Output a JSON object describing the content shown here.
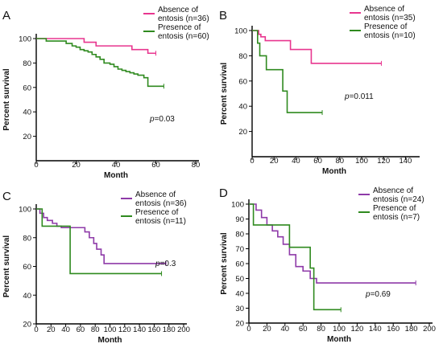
{
  "chart_data": [
    {
      "panel": "A",
      "type": "line",
      "xlabel": "Month",
      "ylabel": "Percent survival",
      "xlim": [
        0,
        80
      ],
      "ylim": [
        0,
        100
      ],
      "xticks": [
        "0",
        "20",
        "40",
        "60",
        "80"
      ],
      "yticks": [
        "20",
        "40",
        "60",
        "80",
        "100"
      ],
      "legend_position": "top-right",
      "p_prefix": "p",
      "p_value": "=0.03",
      "series": [
        {
          "name": "Absence of entosis (n=36)",
          "color": "#e8368f",
          "x": [
            0,
            22,
            24,
            30,
            48,
            56,
            60
          ],
          "y": [
            100,
            100,
            97,
            94,
            91,
            88,
            88
          ]
        },
        {
          "name": "Presence of entosis (n=60)",
          "color": "#2f8a1f",
          "x": [
            0,
            5,
            12,
            15,
            18,
            20,
            22,
            24,
            26,
            28,
            30,
            32,
            34,
            37,
            39,
            41,
            43,
            45,
            47,
            49,
            51,
            54,
            56,
            64
          ],
          "y": [
            100,
            98,
            98,
            96,
            94,
            93,
            91,
            90,
            89,
            87,
            85,
            83,
            80,
            79,
            77,
            75,
            74,
            73,
            72,
            71,
            70,
            68,
            61,
            61
          ]
        }
      ]
    },
    {
      "panel": "B",
      "type": "line",
      "xlabel": "Month",
      "ylabel": "Percent survival",
      "xlim": [
        0,
        150
      ],
      "ylim": [
        0,
        100
      ],
      "xticks": [
        "0",
        "20",
        "40",
        "60",
        "80",
        "100",
        "120",
        "140"
      ],
      "yticks": [
        "20",
        "40",
        "60",
        "80",
        "100"
      ],
      "legend_position": "top-right",
      "p_prefix": "p",
      "p_value": "=0.011",
      "series": [
        {
          "name": "Absence of entosis (n=35)",
          "color": "#e8368f",
          "x": [
            0,
            4,
            6,
            8,
            12,
            32,
            35,
            52,
            54,
            118
          ],
          "y": [
            100,
            100,
            97,
            95,
            92,
            92,
            85,
            85,
            74,
            74
          ]
        },
        {
          "name": "Presence of entosis (n=10)",
          "color": "#2f8a1f",
          "x": [
            0,
            3,
            5,
            7,
            13,
            18,
            28,
            32,
            64
          ],
          "y": [
            100,
            100,
            90,
            80,
            69,
            69,
            52,
            35,
            35
          ]
        }
      ]
    },
    {
      "panel": "C",
      "type": "line",
      "xlabel": "Month",
      "ylabel": "Percent survival",
      "xlim": [
        0,
        200
      ],
      "ylim": [
        20,
        100
      ],
      "xticks": [
        "0",
        "20",
        "40",
        "60",
        "80",
        "100",
        "120",
        "140",
        "160",
        "180",
        "200"
      ],
      "yticks": [
        "20",
        "40",
        "60",
        "80",
        "100"
      ],
      "legend_position": "top-right",
      "p_prefix": "p",
      "p_value": "=0.3",
      "series": [
        {
          "name": "Absence of entosis (n=36)",
          "color": "#8e3aa8",
          "x": [
            0,
            5,
            10,
            15,
            22,
            28,
            34,
            60,
            66,
            72,
            78,
            82,
            88,
            92,
            176
          ],
          "y": [
            100,
            97,
            94,
            92,
            90,
            88,
            87,
            87,
            84,
            80,
            76,
            72,
            68,
            62,
            62
          ]
        },
        {
          "name": "Presence of entosis (n=11)",
          "color": "#2f8a1f",
          "x": [
            0,
            8,
            40,
            46,
            170
          ],
          "y": [
            100,
            88,
            88,
            55,
            55
          ]
        }
      ]
    },
    {
      "panel": "D",
      "type": "line",
      "xlabel": "Month",
      "ylabel": "Percent survival",
      "xlim": [
        0,
        200
      ],
      "ylim": [
        20,
        100
      ],
      "xticks": [
        "0",
        "20",
        "40",
        "60",
        "80",
        "100",
        "120",
        "140",
        "160",
        "180",
        "200"
      ],
      "yticks": [
        "20",
        "30",
        "40",
        "50",
        "60",
        "70",
        "80",
        "90",
        "100"
      ],
      "legend_position": "top-right",
      "p_prefix": "p",
      "p_value": "=0.69",
      "series": [
        {
          "name": "Absence of entosis (n=24)",
          "color": "#8e3aa8",
          "x": [
            0,
            8,
            14,
            20,
            26,
            32,
            38,
            45,
            52,
            60,
            68,
            75,
            185
          ],
          "y": [
            100,
            96,
            91,
            86,
            82,
            78,
            73,
            66,
            58,
            55,
            50,
            47,
            47
          ]
        },
        {
          "name": "Presence of entosis (n=7)",
          "color": "#2f8a1f",
          "x": [
            0,
            5,
            35,
            45,
            68,
            72,
            102
          ],
          "y": [
            100,
            86,
            86,
            71,
            57,
            29,
            29
          ]
        }
      ]
    }
  ]
}
